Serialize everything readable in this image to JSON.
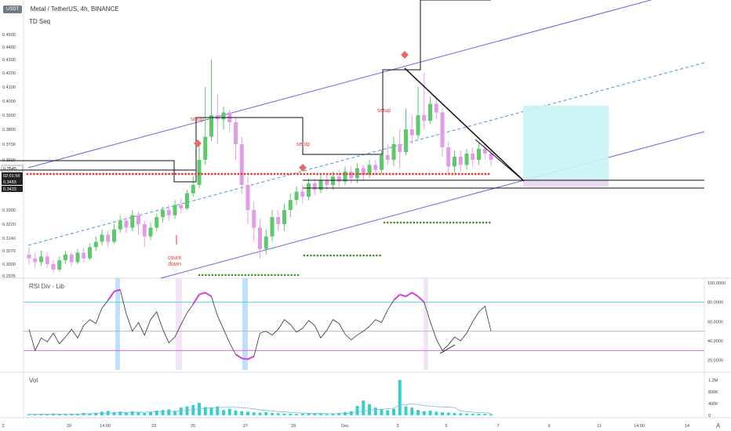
{
  "header": {
    "currency_badge": "USDT",
    "title": "Metal / TetherUS, 4h, BINANCE",
    "indicator": "TD Seq"
  },
  "colors": {
    "up": "#26a69a",
    "bull_candle": "#5cc96b",
    "bear_candle": "#e39be8",
    "channel": "#6f63e0",
    "midline": "#4a90e2",
    "support": "#e53935",
    "green_dots": "#3e8e26",
    "rsi_line": "#333333",
    "rsi_highlight": "#d63de0",
    "rsi_upper": "#56d6d6",
    "rsi_lower": "#d86ce0",
    "vol_bar": "#35d0c9",
    "target_box": "#c9f4f4"
  },
  "annotations": {
    "setup1": "setup",
    "setup2": "setup",
    "setup3": "setup",
    "countdown_line1": "count",
    "countdown_line2": "down"
  },
  "price_badges": {
    "current": "0.3545",
    "timer": "02:01:56",
    "level1": "0.3483",
    "level2": "0.3433"
  },
  "panels": {
    "rsi_title": "RSI Div - Lib",
    "vol_title": "Vol"
  },
  "tv_logo": "A",
  "chart_data": [
    {
      "type": "candlestick",
      "price_axis_ticks": [
        "0.4500",
        "0.4400",
        "0.4300",
        "0.4200",
        "0.4100",
        "0.4000",
        "0.3900",
        "0.3800",
        "0.3700",
        "0.3600",
        "0.3300",
        "0.3220",
        "0.3140",
        "0.3070",
        "0.3000",
        "0.2935"
      ],
      "time_axis_ticks": [
        "Z",
        "20",
        "14:00",
        "23",
        "25",
        "27",
        "29",
        "Dec",
        "3",
        "5",
        "7",
        "9",
        "11",
        "14:00",
        "14",
        "A"
      ],
      "ylim": [
        0.2935,
        0.45
      ],
      "candles": [
        [
          0.305,
          0.303,
          0.309,
          0.3
        ],
        [
          0.303,
          0.301,
          0.306,
          0.298
        ],
        [
          0.301,
          0.304,
          0.307,
          0.299
        ],
        [
          0.304,
          0.3,
          0.306,
          0.298
        ],
        [
          0.3,
          0.297,
          0.302,
          0.295
        ],
        [
          0.297,
          0.302,
          0.304,
          0.296
        ],
        [
          0.302,
          0.305,
          0.307,
          0.3
        ],
        [
          0.305,
          0.301,
          0.306,
          0.299
        ],
        [
          0.301,
          0.306,
          0.308,
          0.3
        ],
        [
          0.306,
          0.303,
          0.309,
          0.301
        ],
        [
          0.303,
          0.309,
          0.311,
          0.302
        ],
        [
          0.309,
          0.312,
          0.315,
          0.307
        ],
        [
          0.312,
          0.316,
          0.319,
          0.31
        ],
        [
          0.316,
          0.312,
          0.318,
          0.309
        ],
        [
          0.312,
          0.319,
          0.322,
          0.311
        ],
        [
          0.319,
          0.324,
          0.327,
          0.317
        ],
        [
          0.324,
          0.32,
          0.326,
          0.317
        ],
        [
          0.32,
          0.327,
          0.33,
          0.318
        ],
        [
          0.327,
          0.322,
          0.329,
          0.316
        ],
        [
          0.322,
          0.315,
          0.324,
          0.309
        ],
        [
          0.315,
          0.32,
          0.323,
          0.313
        ],
        [
          0.32,
          0.326,
          0.328,
          0.318
        ],
        [
          0.326,
          0.33,
          0.332,
          0.323
        ],
        [
          0.33,
          0.327,
          0.333,
          0.324
        ],
        [
          0.327,
          0.333,
          0.336,
          0.325
        ],
        [
          0.333,
          0.331,
          0.337,
          0.328
        ],
        [
          0.331,
          0.34,
          0.342,
          0.33
        ],
        [
          0.34,
          0.345,
          0.35,
          0.338
        ],
        [
          0.345,
          0.36,
          0.37,
          0.343
        ],
        [
          0.36,
          0.375,
          0.41,
          0.357
        ],
        [
          0.375,
          0.39,
          0.43,
          0.372
        ],
        [
          0.39,
          0.387,
          0.405,
          0.37
        ],
        [
          0.387,
          0.392,
          0.396,
          0.38
        ],
        [
          0.392,
          0.385,
          0.394,
          0.378
        ],
        [
          0.385,
          0.37,
          0.388,
          0.36
        ],
        [
          0.37,
          0.345,
          0.375,
          0.34
        ],
        [
          0.345,
          0.33,
          0.35,
          0.322
        ],
        [
          0.33,
          0.32,
          0.335,
          0.312
        ],
        [
          0.32,
          0.308,
          0.325,
          0.303
        ],
        [
          0.308,
          0.315,
          0.319,
          0.305
        ],
        [
          0.315,
          0.326,
          0.33,
          0.312
        ],
        [
          0.326,
          0.322,
          0.33,
          0.318
        ],
        [
          0.322,
          0.33,
          0.334,
          0.318
        ],
        [
          0.33,
          0.336,
          0.34,
          0.326
        ],
        [
          0.336,
          0.341,
          0.344,
          0.333
        ],
        [
          0.341,
          0.338,
          0.345,
          0.334
        ],
        [
          0.338,
          0.346,
          0.349,
          0.336
        ],
        [
          0.346,
          0.342,
          0.349,
          0.339
        ],
        [
          0.342,
          0.348,
          0.352,
          0.34
        ],
        [
          0.348,
          0.345,
          0.351,
          0.342
        ],
        [
          0.345,
          0.35,
          0.353,
          0.342
        ],
        [
          0.35,
          0.347,
          0.354,
          0.344
        ],
        [
          0.347,
          0.353,
          0.356,
          0.345
        ],
        [
          0.353,
          0.349,
          0.356,
          0.346
        ],
        [
          0.349,
          0.355,
          0.358,
          0.346
        ],
        [
          0.355,
          0.351,
          0.357,
          0.348
        ],
        [
          0.351,
          0.357,
          0.36,
          0.349
        ],
        [
          0.357,
          0.354,
          0.36,
          0.351
        ],
        [
          0.354,
          0.363,
          0.366,
          0.352
        ],
        [
          0.363,
          0.36,
          0.37,
          0.357
        ],
        [
          0.36,
          0.37,
          0.375,
          0.356
        ],
        [
          0.37,
          0.365,
          0.38,
          0.355
        ],
        [
          0.365,
          0.38,
          0.395,
          0.363
        ],
        [
          0.38,
          0.376,
          0.39,
          0.37
        ],
        [
          0.376,
          0.39,
          0.41,
          0.373
        ],
        [
          0.39,
          0.386,
          0.42,
          0.38
        ],
        [
          0.386,
          0.398,
          0.403,
          0.384
        ],
        [
          0.398,
          0.392,
          0.402,
          0.387
        ],
        [
          0.392,
          0.368,
          0.395,
          0.362
        ],
        [
          0.368,
          0.356,
          0.372,
          0.351
        ],
        [
          0.356,
          0.362,
          0.366,
          0.352
        ],
        [
          0.362,
          0.357,
          0.366,
          0.353
        ],
        [
          0.357,
          0.364,
          0.367,
          0.354
        ],
        [
          0.364,
          0.36,
          0.368,
          0.356
        ],
        [
          0.36,
          0.367,
          0.371,
          0.357
        ],
        [
          0.367,
          0.364,
          0.37,
          0.36
        ],
        [
          0.364,
          0.36,
          0.367,
          0.356
        ]
      ],
      "support_level": 0.3535,
      "target_box": [
        0.3483,
        0.3915
      ]
    },
    {
      "type": "line",
      "name": "RSI Div - Lib",
      "yticks": [
        "100.0000",
        "80.0000",
        "60.0000",
        "40.0000",
        "20.0000"
      ],
      "ylim": [
        10,
        100
      ],
      "levels": [
        80,
        50,
        30
      ],
      "values": [
        52,
        30,
        43,
        39,
        48,
        37,
        44,
        52,
        43,
        56,
        62,
        58,
        74,
        82,
        91,
        93,
        68,
        50,
        59,
        46,
        62,
        70,
        52,
        38,
        44,
        57,
        69,
        78,
        88,
        90,
        86,
        66,
        52,
        38,
        26,
        22,
        21,
        24,
        48,
        50,
        46,
        52,
        62,
        57,
        49,
        53,
        61,
        56,
        43,
        51,
        62,
        58,
        47,
        41,
        46,
        50,
        55,
        62,
        59,
        72,
        82,
        88,
        86,
        90,
        86,
        80,
        60,
        42,
        30,
        36,
        44,
        40,
        48,
        60,
        70,
        76,
        50
      ]
    },
    {
      "type": "bar",
      "name": "Vol",
      "yticks": [
        "1.2M",
        "800K",
        "400K",
        "0"
      ],
      "ylim": [
        0,
        1300000
      ],
      "values": [
        40,
        30,
        50,
        35,
        60,
        40,
        45,
        55,
        50,
        80,
        70,
        90,
        120,
        150,
        110,
        130,
        90,
        140,
        100,
        80,
        120,
        160,
        180,
        200,
        150,
        260,
        300,
        350,
        420,
        280,
        250,
        300,
        180,
        220,
        160,
        140,
        120,
        100,
        90,
        110,
        80,
        70,
        60,
        50,
        45,
        55,
        70,
        60,
        50,
        40,
        60,
        80,
        110,
        140,
        320,
        500,
        380,
        260,
        200,
        170,
        220,
        1200,
        300,
        260,
        180,
        140,
        160,
        120,
        100,
        90,
        80,
        70,
        60,
        55,
        50,
        45,
        40
      ]
    }
  ]
}
